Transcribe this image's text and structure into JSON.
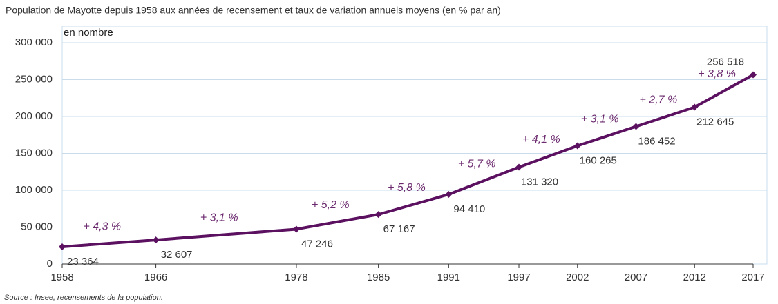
{
  "chart_data": {
    "type": "line",
    "title": "Population de Mayotte depuis 1958 aux années de recensement et taux de variation annuels moyens (en % par an)",
    "ylabel": "en nombre",
    "source": "Source : Insee, recensements de la population.",
    "x": [
      1958,
      1966,
      1978,
      1985,
      1991,
      1997,
      2002,
      2007,
      2012,
      2017
    ],
    "series": [
      {
        "name": "Population",
        "color": "#5b1060",
        "values": [
          23364,
          32607,
          47246,
          67167,
          94410,
          131320,
          160265,
          186452,
          212645,
          256518
        ],
        "value_labels": [
          "23 364",
          "32 607",
          "47 246",
          "67 167",
          "94 410",
          "131 320",
          "160 265",
          "186 452",
          "212 645",
          "256 518"
        ]
      }
    ],
    "annotations": [
      "+ 4,3 %",
      "+ 3,1 %",
      "+ 5,2 %",
      "+ 5,8 %",
      "+ 5,7 %",
      "+ 4,1 %",
      "+ 3,1 %",
      "+ 2,7 %",
      "+ 3,8 %"
    ],
    "xlim": [
      1958,
      2017
    ],
    "xticks": [
      1958,
      1966,
      1978,
      1985,
      1991,
      1997,
      2002,
      2007,
      2012,
      2017
    ],
    "ylim": [
      0,
      300000
    ],
    "yticks": [
      0,
      {
        "value": 50000,
        "label": "50 000"
      },
      {
        "value": 100000,
        "label": "100 000"
      },
      {
        "value": 150000,
        "label": "150 000"
      },
      {
        "value": 200000,
        "label": "200 000"
      },
      {
        "value": 250000,
        "label": "250 000"
      },
      {
        "value": 300000,
        "label": "300 000"
      }
    ],
    "grid": true
  }
}
